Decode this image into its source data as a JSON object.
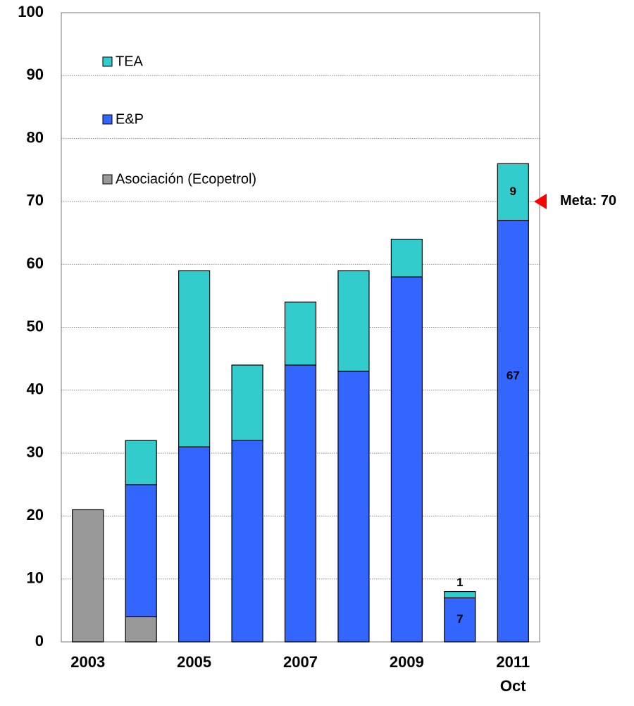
{
  "chart_data": {
    "type": "stacked_bar",
    "categories": [
      "2003",
      null,
      "2005",
      null,
      "2007",
      null,
      "2009",
      null,
      "2011\nOct"
    ],
    "series": [
      {
        "name": "Asociación (Ecopetrol)",
        "color": "#999999",
        "values": [
          21,
          4,
          0,
          0,
          0,
          0,
          0,
          0,
          0
        ]
      },
      {
        "name": "E&P",
        "color": "#3366ff",
        "values": [
          0,
          21,
          31,
          32,
          44,
          43,
          58,
          7,
          67
        ],
        "value_labels": [
          null,
          null,
          null,
          null,
          null,
          null,
          null,
          "7",
          "67"
        ]
      },
      {
        "name": "TEA",
        "color": "#33cccc",
        "values": [
          0,
          7,
          28,
          12,
          10,
          16,
          6,
          1,
          9
        ],
        "value_labels": [
          null,
          null,
          null,
          null,
          null,
          null,
          null,
          "1",
          "9"
        ]
      }
    ],
    "ylim": [
      0,
      100
    ],
    "yticks": [
      0,
      10,
      20,
      30,
      40,
      50,
      60,
      70,
      80,
      90,
      100
    ],
    "grid": true,
    "target": {
      "label": "Meta: 70",
      "value": 70,
      "color": "#ff0000"
    }
  }
}
